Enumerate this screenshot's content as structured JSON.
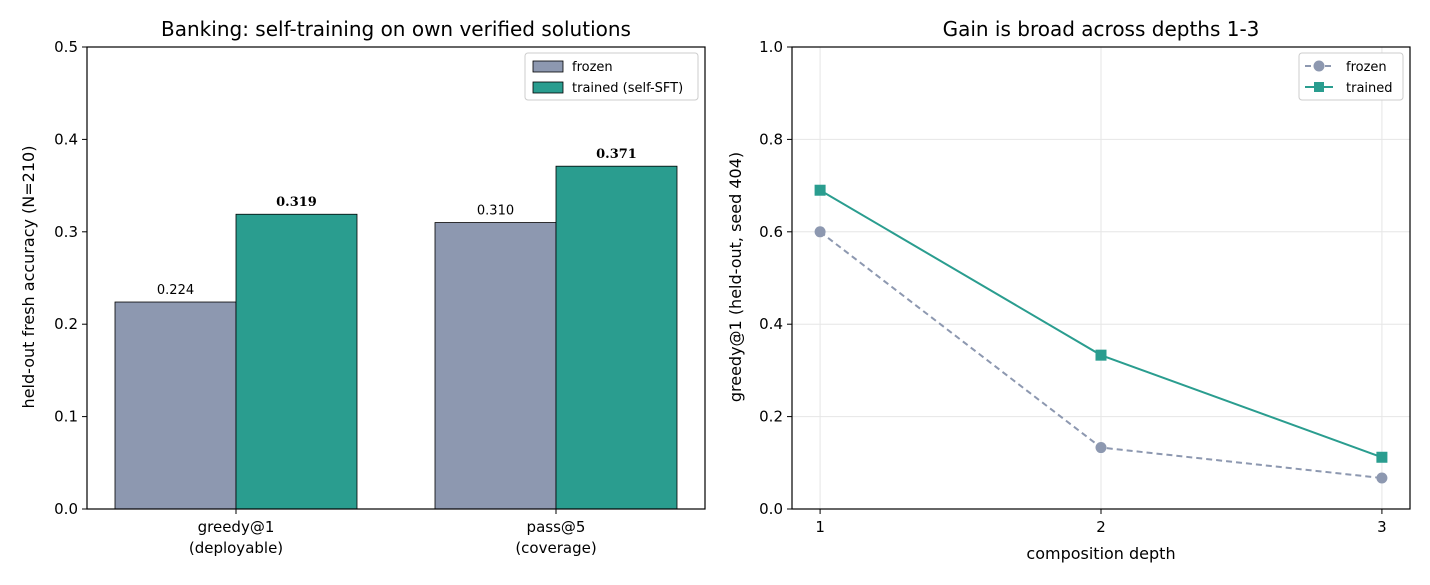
{
  "colors": {
    "frozen": "#8d98b0",
    "trained": "#2a9d8f",
    "grid": "#e6e6e6"
  },
  "chart_data": [
    {
      "type": "bar",
      "title": "Banking: self-training on own verified solutions",
      "ylabel": "held-out fresh accuracy (N=210)",
      "xlabel": "",
      "categories": [
        [
          "greedy@1",
          "(deployable)"
        ],
        [
          "pass@5",
          "(coverage)"
        ]
      ],
      "series": [
        {
          "name": "frozen",
          "values": [
            0.224,
            0.31
          ],
          "labels": [
            "0.224",
            "0.310"
          ]
        },
        {
          "name": "trained (self-SFT)",
          "values": [
            0.319,
            0.371
          ],
          "labels": [
            "0.319",
            "0.371"
          ]
        }
      ],
      "ylim": [
        0,
        0.5
      ],
      "yticks": [
        0.0,
        0.1,
        0.2,
        0.3,
        0.4,
        0.5
      ],
      "ytick_labels": [
        "0.0",
        "0.1",
        "0.2",
        "0.3",
        "0.4",
        "0.5"
      ],
      "grid": false,
      "legend_position": "top-right"
    },
    {
      "type": "line",
      "title": "Gain is broad across depths 1-3",
      "xlabel": "composition depth",
      "ylabel": "greedy@1 (held-out, seed 404)",
      "x": [
        1,
        2,
        3
      ],
      "xtick_labels": [
        "1",
        "2",
        "3"
      ],
      "series": [
        {
          "name": "frozen",
          "values": [
            0.6,
            0.133,
            0.067
          ],
          "style": "dashed",
          "marker": "circle"
        },
        {
          "name": "trained",
          "values": [
            0.69,
            0.333,
            0.112
          ],
          "style": "solid",
          "marker": "square"
        }
      ],
      "xlim": [
        0.9,
        3.1
      ],
      "ylim": [
        0,
        1.0
      ],
      "yticks": [
        0.0,
        0.2,
        0.4,
        0.6,
        0.8,
        1.0
      ],
      "ytick_labels": [
        "0.0",
        "0.2",
        "0.4",
        "0.6",
        "0.8",
        "1.0"
      ],
      "grid": true,
      "legend_position": "top-right"
    }
  ]
}
